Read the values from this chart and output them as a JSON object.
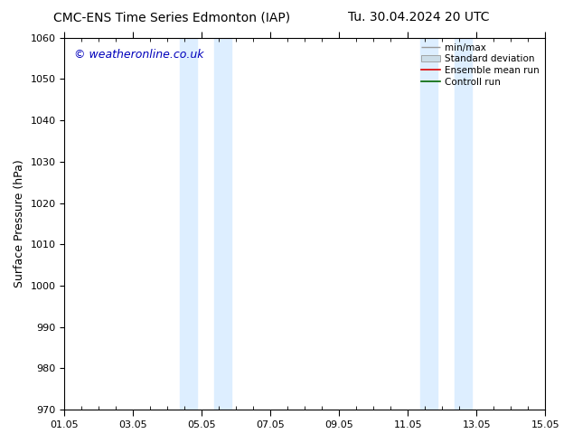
{
  "title_left": "CMC-ENS Time Series Edmonton (IAP)",
  "title_right": "Tu. 30.04.2024 20 UTC",
  "ylabel": "Surface Pressure (hPa)",
  "xlabel_ticks": [
    "01.05",
    "03.05",
    "05.05",
    "07.05",
    "09.05",
    "11.05",
    "13.05",
    "15.05"
  ],
  "xtick_values": [
    0,
    2,
    4,
    6,
    8,
    10,
    12,
    14
  ],
  "ylim": [
    970,
    1060
  ],
  "xlim": [
    0,
    14
  ],
  "yticks": [
    970,
    980,
    990,
    1000,
    1010,
    1020,
    1030,
    1040,
    1050,
    1060
  ],
  "shaded_bands": [
    {
      "x_start": 3.35,
      "x_end": 3.85,
      "color": "#ddeeff"
    },
    {
      "x_start": 4.35,
      "x_end": 4.85,
      "color": "#ddeeff"
    },
    {
      "x_start": 10.35,
      "x_end": 10.85,
      "color": "#ddeeff"
    },
    {
      "x_start": 11.35,
      "x_end": 11.85,
      "color": "#ddeeff"
    }
  ],
  "legend_entries": [
    {
      "label": "min/max",
      "color": "#aaaaaa",
      "type": "errorbar"
    },
    {
      "label": "Standard deviation",
      "color": "#ccddee",
      "type": "box"
    },
    {
      "label": "Ensemble mean run",
      "color": "#ff0000",
      "type": "line"
    },
    {
      "label": "Controll run",
      "color": "#006600",
      "type": "line"
    }
  ],
  "watermark_text": "© weatheronline.co.uk",
  "watermark_color": "#0000bb",
  "watermark_fontsize": 9,
  "bg_color": "#ffffff",
  "title_fontsize": 10,
  "tick_fontsize": 8,
  "ylabel_fontsize": 9
}
